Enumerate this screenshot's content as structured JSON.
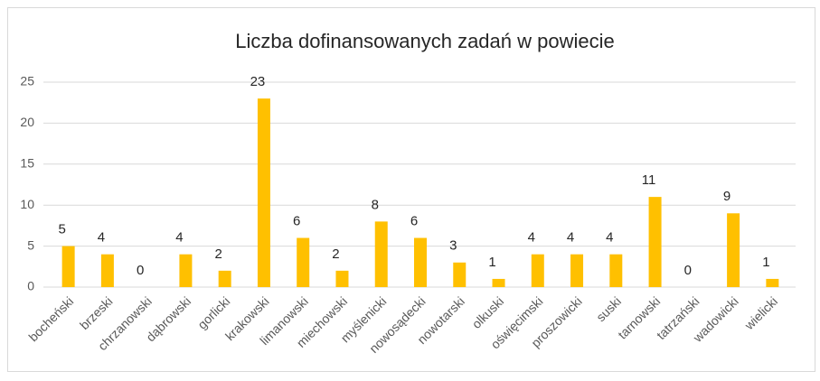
{
  "chart_data": {
    "type": "bar",
    "title": "Liczba dofinansowanych zadań w powiecie",
    "categories": [
      "bocheński",
      "brzeski",
      "chrzanowski",
      "dąbrowski",
      "gorlicki",
      "krakowski",
      "limanowski",
      "miechowski",
      "myślenicki",
      "nowosądecki",
      "nowotarski",
      "olkuski",
      "oświęcimski",
      "proszowicki",
      "suski",
      "tarnowski",
      "tatrzański",
      "wadowicki",
      "wielicki"
    ],
    "values": [
      5,
      4,
      0,
      4,
      2,
      23,
      6,
      2,
      8,
      6,
      3,
      1,
      4,
      4,
      4,
      11,
      0,
      9,
      1
    ],
    "color": "#ffc000",
    "ylim": [
      0,
      25
    ],
    "yticks": [
      0,
      5,
      10,
      15,
      20,
      25
    ],
    "grid": true
  }
}
